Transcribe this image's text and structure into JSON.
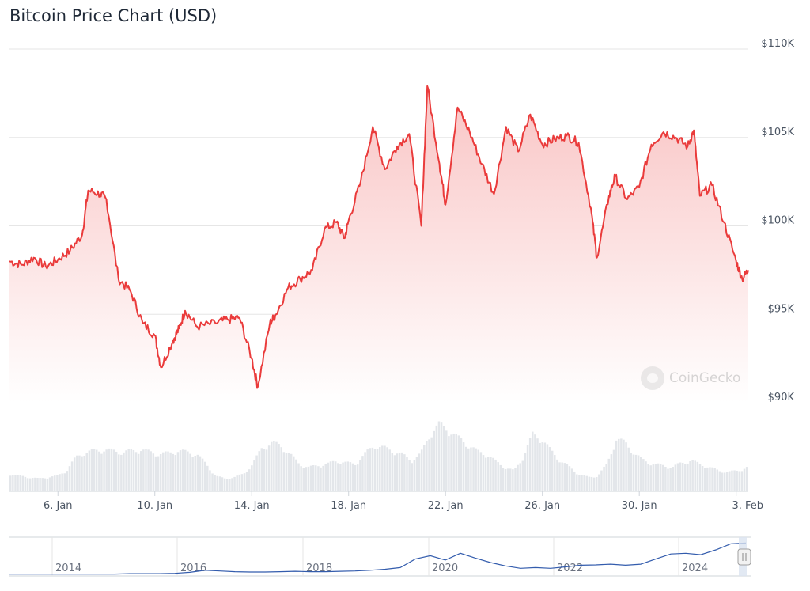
{
  "title": "Bitcoin Price Chart (USD)",
  "watermark": "CoinGecko",
  "colors": {
    "line": "#ea3b3b",
    "fill_top": "#f9c4c4",
    "fill_bottom": "#ffffff",
    "grid": "#e6e6e6",
    "volume": "#e3e6ea",
    "navigator_line": "#335cad",
    "navigator_mask": "#dbe4f0"
  },
  "chart_data": {
    "type": "line",
    "title": "Bitcoin Price Chart (USD)",
    "ylim": [
      90000,
      110000
    ],
    "yticks": [
      {
        "value": 110000,
        "label": "$110K"
      },
      {
        "value": 105000,
        "label": "$105K"
      },
      {
        "value": 100000,
        "label": "$100K"
      },
      {
        "value": 95000,
        "label": "$95K"
      },
      {
        "value": 90000,
        "label": "$90K"
      }
    ],
    "xrange": [
      "2025-01-04",
      "2025-02-03"
    ],
    "xticks": [
      {
        "date": "2025-01-06",
        "label": "6. Jan"
      },
      {
        "date": "2025-01-10",
        "label": "10. Jan"
      },
      {
        "date": "2025-01-14",
        "label": "14. Jan"
      },
      {
        "date": "2025-01-18",
        "label": "18. Jan"
      },
      {
        "date": "2025-01-22",
        "label": "22. Jan"
      },
      {
        "date": "2025-01-26",
        "label": "26. Jan"
      },
      {
        "date": "2025-01-30",
        "label": "30. Jan"
      },
      {
        "date": "2025-02-03",
        "label": "3. Feb"
      }
    ],
    "grid": true,
    "series": [
      {
        "values": [
          [
            "2025-01-04T00:00",
            98000
          ],
          [
            "2025-01-04T12:00",
            97800
          ],
          [
            "2025-01-05T00:00",
            98200
          ],
          [
            "2025-01-05T12:00",
            97700
          ],
          [
            "2025-01-06T00:00",
            98100
          ],
          [
            "2025-01-06T12:00",
            98600
          ],
          [
            "2025-01-07T00:00",
            99500
          ],
          [
            "2025-01-07T06:00",
            102000
          ],
          [
            "2025-01-07T18:00",
            101800
          ],
          [
            "2025-01-08T00:00",
            101500
          ],
          [
            "2025-01-08T12:00",
            97000
          ],
          [
            "2025-01-09T00:00",
            96300
          ],
          [
            "2025-01-09T12:00",
            94500
          ],
          [
            "2025-01-10T00:00",
            93800
          ],
          [
            "2025-01-10T06:00",
            92000
          ],
          [
            "2025-01-10T18:00",
            93500
          ],
          [
            "2025-01-11T00:00",
            94200
          ],
          [
            "2025-01-11T06:00",
            95200
          ],
          [
            "2025-01-11T18:00",
            94300
          ],
          [
            "2025-01-12T12:00",
            94500
          ],
          [
            "2025-01-13T00:00",
            94700
          ],
          [
            "2025-01-13T12:00",
            94800
          ],
          [
            "2025-01-14T00:00",
            92500
          ],
          [
            "2025-01-14T06:00",
            90900
          ],
          [
            "2025-01-14T18:00",
            94500
          ],
          [
            "2025-01-15T00:00",
            95000
          ],
          [
            "2025-01-15T12:00",
            96500
          ],
          [
            "2025-01-16T00:00",
            97000
          ],
          [
            "2025-01-16T12:00",
            97500
          ],
          [
            "2025-01-17T00:00",
            99800
          ],
          [
            "2025-01-17T12:00",
            100200
          ],
          [
            "2025-01-17T20:00",
            99300
          ],
          [
            "2025-01-18T00:00",
            100300
          ],
          [
            "2025-01-18T12:00",
            102500
          ],
          [
            "2025-01-19T00:00",
            105600
          ],
          [
            "2025-01-19T12:00",
            103200
          ],
          [
            "2025-01-20T00:00",
            104500
          ],
          [
            "2025-01-20T12:00",
            105200
          ],
          [
            "2025-01-21T00:00",
            100000
          ],
          [
            "2025-01-21T06:00",
            107900
          ],
          [
            "2025-01-21T18:00",
            103500
          ],
          [
            "2025-01-22T00:00",
            101200
          ],
          [
            "2025-01-22T12:00",
            106700
          ],
          [
            "2025-01-23T00:00",
            105300
          ],
          [
            "2025-01-23T12:00",
            103500
          ],
          [
            "2025-01-24T00:00",
            101800
          ],
          [
            "2025-01-24T12:00",
            105600
          ],
          [
            "2025-01-25T00:00",
            104200
          ],
          [
            "2025-01-25T12:00",
            106300
          ],
          [
            "2025-01-26T00:00",
            104600
          ],
          [
            "2025-01-26T12:00",
            104900
          ],
          [
            "2025-01-27T00:00",
            105100
          ],
          [
            "2025-01-27T12:00",
            104700
          ],
          [
            "2025-01-28T00:00",
            101000
          ],
          [
            "2025-01-28T06:00",
            98200
          ],
          [
            "2025-01-28T18:00",
            101700
          ],
          [
            "2025-01-29T00:00",
            102800
          ],
          [
            "2025-01-29T12:00",
            101500
          ],
          [
            "2025-01-30T00:00",
            102200
          ],
          [
            "2025-01-30T12:00",
            104600
          ],
          [
            "2025-01-31T00:00",
            105300
          ],
          [
            "2025-01-31T12:00",
            105000
          ],
          [
            "2025-02-01T00:00",
            104500
          ],
          [
            "2025-02-01T06:00",
            105400
          ],
          [
            "2025-02-01T12:00",
            101700
          ],
          [
            "2025-02-02T00:00",
            102300
          ],
          [
            "2025-02-02T12:00",
            100200
          ],
          [
            "2025-02-03T00:00",
            98000
          ],
          [
            "2025-02-03T06:00",
            97000
          ],
          [
            "2025-02-03T12:00",
            97500
          ]
        ]
      }
    ],
    "volume_profile": [
      0.25,
      0.22,
      0.2,
      0.18,
      0.2,
      0.22,
      0.3,
      0.5,
      0.58,
      0.6,
      0.62,
      0.6,
      0.58,
      0.6,
      0.62,
      0.58,
      0.55,
      0.57,
      0.6,
      0.58,
      0.55,
      0.4,
      0.22,
      0.18,
      0.2,
      0.25,
      0.4,
      0.65,
      0.72,
      0.68,
      0.55,
      0.4,
      0.35,
      0.38,
      0.4,
      0.45,
      0.42,
      0.4,
      0.55,
      0.68,
      0.65,
      0.6,
      0.55,
      0.45,
      0.55,
      0.85,
      1.0,
      0.92,
      0.8,
      0.7,
      0.6,
      0.55,
      0.45,
      0.35,
      0.3,
      0.5,
      0.85,
      0.78,
      0.6,
      0.45,
      0.35,
      0.25,
      0.2,
      0.22,
      0.4,
      0.78,
      0.72,
      0.55,
      0.45,
      0.4,
      0.38,
      0.35,
      0.42,
      0.45,
      0.4,
      0.35,
      0.3,
      0.28,
      0.3,
      0.35
    ],
    "navigator": {
      "xticks": [
        "2014",
        "2016",
        "2018",
        "2020",
        "2022",
        "2024"
      ],
      "values": [
        0.01,
        0.01,
        0.01,
        0.01,
        0.01,
        0.01,
        0.01,
        0.01,
        0.02,
        0.02,
        0.02,
        0.03,
        0.06,
        0.12,
        0.1,
        0.08,
        0.07,
        0.07,
        0.08,
        0.09,
        0.08,
        0.08,
        0.09,
        0.1,
        0.12,
        0.15,
        0.2,
        0.45,
        0.55,
        0.42,
        0.62,
        0.48,
        0.35,
        0.25,
        0.18,
        0.2,
        0.18,
        0.22,
        0.27,
        0.28,
        0.3,
        0.27,
        0.3,
        0.45,
        0.6,
        0.62,
        0.58,
        0.72,
        0.9,
        0.92
      ]
    }
  }
}
